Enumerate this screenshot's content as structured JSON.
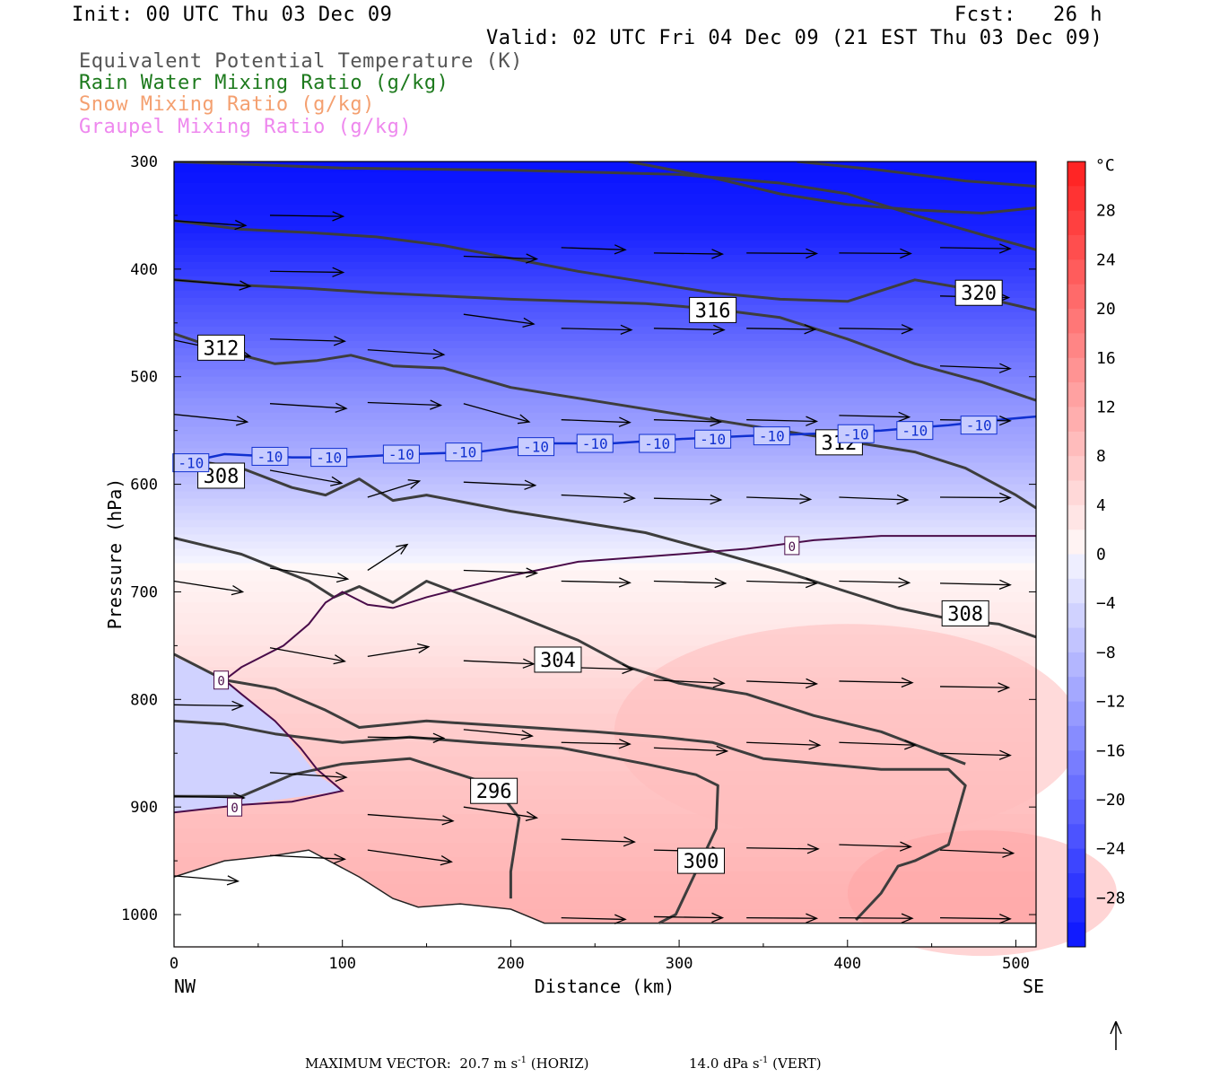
{
  "header": {
    "init": "Init: 00 UTC Thu 03 Dec 09",
    "fcst": "Fcst:   26 h",
    "valid": "Valid: 02 UTC Fri 04 Dec 09 (21 EST Thu 03 Dec 09)"
  },
  "legend": [
    {
      "label": "Equivalent Potential Temperature (K)",
      "color": "#555555"
    },
    {
      "label": "Rain Water Mixing Ratio (g/kg)",
      "color": "#1d7a1d"
    },
    {
      "label": "Snow Mixing Ratio (g/kg)",
      "color": "#f4a070"
    },
    {
      "label": "Graupel Mixing Ratio (g/kg)",
      "color": "#ee88ee"
    }
  ],
  "footer": {
    "max_vector_prefix": "MAXIMUM VECTOR:",
    "horiz_value": "20.7 m s",
    "horiz_exp": "-1",
    "horiz_suffix": "(HORIZ)",
    "vert_value": "14.0 dPa s",
    "vert_exp": "-1",
    "vert_suffix": "(VERT)"
  },
  "chart_data": {
    "type": "cross-section",
    "xlabel": "Distance (km)",
    "ylabel": "Pressure (hPa)",
    "xlim": [
      0,
      512
    ],
    "ylim": [
      1030,
      300
    ],
    "x_ticks": [
      0,
      100,
      200,
      300,
      400,
      500
    ],
    "y_ticks": [
      300,
      400,
      500,
      600,
      700,
      800,
      900,
      1000
    ],
    "left_end_label": "NW",
    "right_end_label": "SE",
    "colorbar": {
      "unit": "°C",
      "ticks": [
        28,
        24,
        20,
        16,
        12,
        8,
        4,
        0,
        -4,
        -8,
        -12,
        -16,
        -20,
        -24,
        -28
      ],
      "range": [
        -32,
        32
      ]
    },
    "theta_e_contours": [
      {
        "label": "296",
        "points": [
          [
            0,
            890
          ],
          [
            40,
            890
          ],
          [
            70,
            870
          ],
          [
            100,
            860
          ],
          [
            140,
            855
          ],
          [
            190,
            880
          ],
          [
            205,
            910
          ],
          [
            200,
            960
          ],
          [
            200,
            985
          ]
        ]
      },
      {
        "label": "300",
        "points": [
          [
            0,
            820
          ],
          [
            30,
            823
          ],
          [
            60,
            832
          ],
          [
            100,
            840
          ],
          [
            140,
            835
          ],
          [
            180,
            840
          ],
          [
            230,
            845
          ],
          [
            280,
            860
          ],
          [
            310,
            870
          ],
          [
            323,
            880
          ],
          [
            322,
            920
          ],
          [
            310,
            960
          ],
          [
            298,
            1000
          ],
          [
            288,
            1008
          ]
        ]
      },
      {
        "label": "304",
        "points": [
          [
            0,
            758
          ],
          [
            30,
            782
          ],
          [
            60,
            790
          ],
          [
            90,
            810
          ],
          [
            110,
            826
          ],
          [
            150,
            820
          ],
          [
            200,
            825
          ],
          [
            250,
            830
          ],
          [
            290,
            835
          ],
          [
            320,
            840
          ],
          [
            350,
            855
          ],
          [
            385,
            860
          ],
          [
            420,
            865
          ],
          [
            460,
            865
          ],
          [
            470,
            880
          ],
          [
            460,
            935
          ],
          [
            440,
            950
          ],
          [
            430,
            955
          ],
          [
            420,
            980
          ],
          [
            405,
            1005
          ]
        ]
      },
      {
        "label": "308",
        "points": [
          [
            0,
            650
          ],
          [
            40,
            665
          ],
          [
            80,
            690
          ],
          [
            95,
            705
          ],
          [
            110,
            695
          ],
          [
            130,
            710
          ],
          [
            150,
            690
          ],
          [
            200,
            720
          ],
          [
            240,
            745
          ],
          [
            270,
            770
          ],
          [
            300,
            785
          ],
          [
            340,
            795
          ],
          [
            380,
            815
          ],
          [
            420,
            830
          ],
          [
            450,
            848
          ],
          [
            470,
            860
          ]
        ]
      },
      {
        "label": "308",
        "points": [
          [
            0,
            575
          ],
          [
            40,
            585
          ],
          [
            70,
            603
          ],
          [
            90,
            610
          ],
          [
            110,
            595
          ],
          [
            130,
            615
          ],
          [
            150,
            610
          ],
          [
            200,
            625
          ],
          [
            240,
            635
          ],
          [
            280,
            645
          ],
          [
            320,
            662
          ],
          [
            360,
            680
          ],
          [
            400,
            700
          ],
          [
            430,
            715
          ],
          [
            460,
            725
          ],
          [
            490,
            730
          ],
          [
            512,
            742
          ]
        ]
      },
      {
        "label": "312",
        "points": [
          [
            0,
            460
          ],
          [
            30,
            476
          ],
          [
            60,
            488
          ],
          [
            85,
            485
          ],
          [
            105,
            480
          ],
          [
            130,
            490
          ],
          [
            160,
            492
          ],
          [
            200,
            510
          ],
          [
            240,
            520
          ],
          [
            280,
            530
          ],
          [
            320,
            540
          ],
          [
            360,
            550
          ],
          [
            400,
            560
          ],
          [
            440,
            570
          ],
          [
            470,
            585
          ],
          [
            500,
            610
          ],
          [
            512,
            622
          ]
        ]
      },
      {
        "label": "316",
        "points": [
          [
            0,
            410
          ],
          [
            40,
            415
          ],
          [
            80,
            418
          ],
          [
            120,
            422
          ],
          [
            160,
            425
          ],
          [
            200,
            428
          ],
          [
            240,
            430
          ],
          [
            280,
            432
          ],
          [
            320,
            437
          ],
          [
            360,
            445
          ],
          [
            400,
            465
          ],
          [
            440,
            488
          ],
          [
            480,
            505
          ],
          [
            512,
            522
          ]
        ]
      },
      {
        "label": "320",
        "points": [
          [
            0,
            355
          ],
          [
            40,
            363
          ],
          [
            80,
            366
          ],
          [
            120,
            370
          ],
          [
            160,
            378
          ],
          [
            200,
            390
          ],
          [
            240,
            402
          ],
          [
            280,
            412
          ],
          [
            320,
            422
          ],
          [
            360,
            428
          ],
          [
            400,
            430
          ],
          [
            440,
            410
          ],
          [
            470,
            418
          ],
          [
            490,
            430
          ],
          [
            512,
            438
          ]
        ]
      },
      {
        "label": "",
        "points": [
          [
            0,
            300
          ],
          [
            100,
            306
          ],
          [
            200,
            308
          ],
          [
            300,
            312
          ],
          [
            360,
            320
          ],
          [
            400,
            330
          ],
          [
            440,
            350
          ],
          [
            480,
            368
          ],
          [
            512,
            382
          ]
        ]
      },
      {
        "label": "",
        "points": [
          [
            270,
            300
          ],
          [
            320,
            315
          ],
          [
            360,
            330
          ],
          [
            400,
            340
          ],
          [
            440,
            345
          ],
          [
            480,
            348
          ],
          [
            512,
            343
          ]
        ]
      },
      {
        "label": "",
        "points": [
          [
            370,
            300
          ],
          [
            420,
            308
          ],
          [
            470,
            318
          ],
          [
            512,
            323
          ]
        ]
      }
    ],
    "isotherms": [
      {
        "label": "-10",
        "points": [
          [
            0,
            582
          ],
          [
            30,
            572
          ],
          [
            70,
            575
          ],
          [
            100,
            575
          ],
          [
            140,
            572
          ],
          [
            180,
            570
          ],
          [
            220,
            562
          ],
          [
            260,
            562
          ],
          [
            300,
            558
          ],
          [
            340,
            555
          ],
          [
            380,
            553
          ],
          [
            420,
            550
          ],
          [
            460,
            545
          ],
          [
            490,
            540
          ],
          [
            512,
            537
          ]
        ]
      },
      {
        "label": "0",
        "points": [
          [
            0,
            905
          ],
          [
            40,
            898
          ],
          [
            70,
            895
          ],
          [
            100,
            885
          ],
          [
            85,
            865
          ],
          [
            75,
            845
          ],
          [
            60,
            820
          ],
          [
            40,
            795
          ],
          [
            30,
            782
          ],
          [
            40,
            770
          ],
          [
            65,
            750
          ],
          [
            80,
            730
          ],
          [
            90,
            710
          ],
          [
            100,
            700
          ],
          [
            115,
            712
          ],
          [
            130,
            715
          ],
          [
            150,
            705
          ],
          [
            200,
            685
          ],
          [
            240,
            672
          ],
          [
            300,
            665
          ],
          [
            340,
            660
          ],
          [
            380,
            652
          ],
          [
            420,
            648
          ],
          [
            470,
            648
          ],
          [
            512,
            648
          ]
        ]
      }
    ],
    "wind_vectors": [
      {
        "x": 0,
        "p": 355,
        "u": 47,
        "w": -9
      },
      {
        "x": 57,
        "p": 350,
        "u": 48,
        "w": -2
      },
      {
        "x": 57,
        "p": 402,
        "u": 48,
        "w": -2
      },
      {
        "x": 57,
        "p": 465,
        "u": 49,
        "w": -4
      },
      {
        "x": 57,
        "p": 525,
        "u": 50,
        "w": -9
      },
      {
        "x": 57,
        "p": 587,
        "u": 47,
        "w": -24
      },
      {
        "x": 57,
        "p": 678,
        "u": 51,
        "w": -20
      },
      {
        "x": 57,
        "p": 752,
        "u": 49,
        "w": -25
      },
      {
        "x": 57,
        "p": 868,
        "u": 50,
        "w": -9
      },
      {
        "x": 57,
        "p": 945,
        "u": 49,
        "w": -7
      },
      {
        "x": 0,
        "p": 410,
        "u": 50,
        "w": -12
      },
      {
        "x": 0,
        "p": 466,
        "u": 50,
        "w": -30
      },
      {
        "x": 0,
        "p": 535,
        "u": 48,
        "w": -14
      },
      {
        "x": 0,
        "p": 580,
        "u": 45,
        "w": -24
      },
      {
        "x": 0,
        "p": 690,
        "u": 45,
        "w": -20
      },
      {
        "x": 0,
        "p": 805,
        "u": 45,
        "w": -2
      },
      {
        "x": 0,
        "p": 890,
        "u": 46,
        "w": -3
      },
      {
        "x": 0,
        "p": 964,
        "u": 42,
        "w": -10
      },
      {
        "x": 115,
        "p": 475,
        "u": 50,
        "w": -9
      },
      {
        "x": 115,
        "p": 524,
        "u": 48,
        "w": -5
      },
      {
        "x": 115,
        "p": 612,
        "u": 34,
        "w": 30
      },
      {
        "x": 115,
        "p": 680,
        "u": 26,
        "w": 48
      },
      {
        "x": 115,
        "p": 760,
        "u": 40,
        "w": 18
      },
      {
        "x": 115,
        "p": 835,
        "u": 50,
        "w": -2
      },
      {
        "x": 115,
        "p": 907,
        "u": 56,
        "w": -12
      },
      {
        "x": 115,
        "p": 940,
        "u": 55,
        "w": -22
      },
      {
        "x": 172,
        "p": 388,
        "u": 48,
        "w": -5
      },
      {
        "x": 172,
        "p": 442,
        "u": 46,
        "w": -18
      },
      {
        "x": 172,
        "p": 525,
        "u": 43,
        "w": -34
      },
      {
        "x": 172,
        "p": 598,
        "u": 47,
        "w": -6
      },
      {
        "x": 172,
        "p": 680,
        "u": 48,
        "w": -5
      },
      {
        "x": 172,
        "p": 764,
        "u": 46,
        "w": -6
      },
      {
        "x": 172,
        "p": 828,
        "u": 45,
        "w": -12
      },
      {
        "x": 172,
        "p": 900,
        "u": 48,
        "w": -20
      },
      {
        "x": 230,
        "p": 380,
        "u": 42,
        "w": -4
      },
      {
        "x": 230,
        "p": 455,
        "u": 46,
        "w": -3
      },
      {
        "x": 230,
        "p": 540,
        "u": 45,
        "w": -5
      },
      {
        "x": 230,
        "p": 610,
        "u": 48,
        "w": -6
      },
      {
        "x": 230,
        "p": 690,
        "u": 45,
        "w": -3
      },
      {
        "x": 230,
        "p": 770,
        "u": 47,
        "w": -4
      },
      {
        "x": 230,
        "p": 840,
        "u": 45,
        "w": -3
      },
      {
        "x": 230,
        "p": 930,
        "u": 48,
        "w": -5
      },
      {
        "x": 230,
        "p": 1003,
        "u": 42,
        "w": -3
      },
      {
        "x": 285,
        "p": 385,
        "u": 45,
        "w": -2
      },
      {
        "x": 285,
        "p": 455,
        "u": 46,
        "w": -3
      },
      {
        "x": 285,
        "p": 540,
        "u": 44,
        "w": -4
      },
      {
        "x": 285,
        "p": 613,
        "u": 44,
        "w": -3
      },
      {
        "x": 285,
        "p": 690,
        "u": 47,
        "w": -4
      },
      {
        "x": 285,
        "p": 782,
        "u": 46,
        "w": -6
      },
      {
        "x": 285,
        "p": 845,
        "u": 48,
        "w": -6
      },
      {
        "x": 285,
        "p": 940,
        "u": 45,
        "w": -3
      },
      {
        "x": 285,
        "p": 1002,
        "u": 45,
        "w": -2
      },
      {
        "x": 340,
        "p": 385,
        "u": 46,
        "w": -1
      },
      {
        "x": 340,
        "p": 455,
        "u": 45,
        "w": -2
      },
      {
        "x": 340,
        "p": 540,
        "u": 46,
        "w": -3
      },
      {
        "x": 340,
        "p": 612,
        "u": 42,
        "w": -4
      },
      {
        "x": 340,
        "p": 690,
        "u": 46,
        "w": -4
      },
      {
        "x": 340,
        "p": 783,
        "u": 46,
        "w": -5
      },
      {
        "x": 340,
        "p": 840,
        "u": 48,
        "w": -5
      },
      {
        "x": 340,
        "p": 938,
        "u": 47,
        "w": -2
      },
      {
        "x": 340,
        "p": 1003,
        "u": 46,
        "w": -1
      },
      {
        "x": 395,
        "p": 385,
        "u": 47,
        "w": -1
      },
      {
        "x": 395,
        "p": 455,
        "u": 48,
        "w": -2
      },
      {
        "x": 395,
        "p": 536,
        "u": 46,
        "w": -3
      },
      {
        "x": 395,
        "p": 612,
        "u": 45,
        "w": -5
      },
      {
        "x": 395,
        "p": 690,
        "u": 46,
        "w": -3
      },
      {
        "x": 395,
        "p": 783,
        "u": 48,
        "w": -3
      },
      {
        "x": 395,
        "p": 840,
        "u": 50,
        "w": -5
      },
      {
        "x": 395,
        "p": 935,
        "u": 47,
        "w": -4
      },
      {
        "x": 395,
        "p": 1003,
        "u": 48,
        "w": -1
      },
      {
        "x": 455,
        "p": 380,
        "u": 46,
        "w": -2
      },
      {
        "x": 455,
        "p": 425,
        "u": 45,
        "w": -3
      },
      {
        "x": 455,
        "p": 490,
        "u": 46,
        "w": -5
      },
      {
        "x": 455,
        "p": 540,
        "u": 46,
        "w": -2
      },
      {
        "x": 455,
        "p": 612,
        "u": 46,
        "w": -1
      },
      {
        "x": 455,
        "p": 692,
        "u": 46,
        "w": -3
      },
      {
        "x": 455,
        "p": 788,
        "u": 45,
        "w": -2
      },
      {
        "x": 455,
        "p": 850,
        "u": 46,
        "w": -4
      },
      {
        "x": 455,
        "p": 940,
        "u": 48,
        "w": -6
      },
      {
        "x": 455,
        "p": 1003,
        "u": 46,
        "w": -2
      }
    ]
  }
}
